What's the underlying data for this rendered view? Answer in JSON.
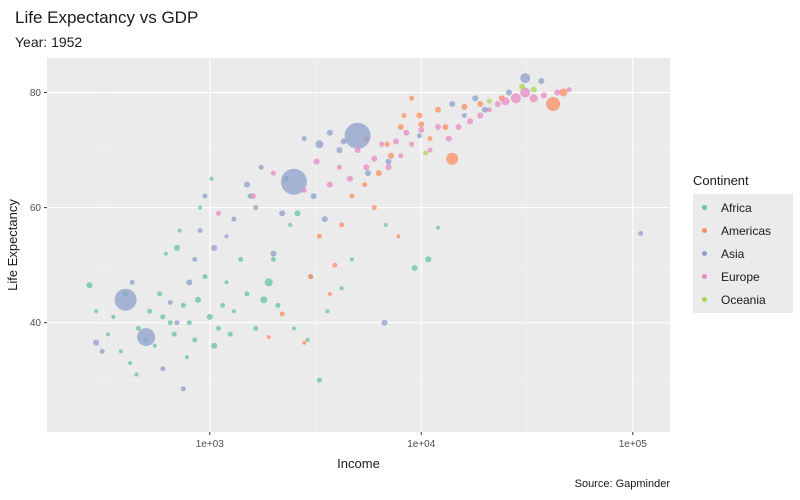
{
  "title": "Life Expectancy vs GDP",
  "subtitle": "Year: 1952",
  "caption": "Source: Gapminder",
  "chart_data": {
    "type": "scatter",
    "title": "Life Expectancy vs GDP",
    "subtitle": "Year: 1952",
    "xlabel": "Income",
    "ylabel": "Life Expectancy",
    "x_scale": "log10",
    "xlim": [
      170,
      150000
    ],
    "ylim": [
      21,
      86
    ],
    "x_ticks": [
      1000,
      10000,
      100000
    ],
    "x_tick_labels": [
      "1e+03",
      "1e+04",
      "1e+05"
    ],
    "y_ticks": [
      40,
      60,
      80
    ],
    "y_tick_labels": [
      "40",
      "60",
      "80"
    ],
    "grid": true,
    "legend": {
      "title": "Continent",
      "position": "right"
    },
    "series": [
      {
        "name": "Africa",
        "color": "#66c2a5",
        "points": [
          [
            270,
            46.5,
            3
          ],
          [
            290,
            42,
            2
          ],
          [
            330,
            38,
            2
          ],
          [
            350,
            41,
            2
          ],
          [
            380,
            35,
            2
          ],
          [
            400,
            45,
            2.5
          ],
          [
            420,
            33,
            2
          ],
          [
            450,
            31,
            2
          ],
          [
            460,
            39,
            2.5
          ],
          [
            500,
            37,
            2.5
          ],
          [
            520,
            42,
            2.5
          ],
          [
            550,
            36,
            2
          ],
          [
            580,
            45,
            2.5
          ],
          [
            600,
            41,
            2.5
          ],
          [
            620,
            52,
            2
          ],
          [
            650,
            40,
            2.5
          ],
          [
            680,
            38,
            2.5
          ],
          [
            700,
            53,
            3
          ],
          [
            720,
            56,
            2
          ],
          [
            750,
            43,
            2.5
          ],
          [
            780,
            34,
            2
          ],
          [
            800,
            40,
            2.5
          ],
          [
            850,
            37,
            2.5
          ],
          [
            880,
            44,
            3
          ],
          [
            900,
            60,
            2
          ],
          [
            950,
            48,
            2.5
          ],
          [
            1000,
            41,
            3
          ],
          [
            1020,
            65,
            2
          ],
          [
            1050,
            36,
            3
          ],
          [
            1100,
            39,
            2.5
          ],
          [
            1150,
            43,
            2.5
          ],
          [
            1200,
            47,
            2
          ],
          [
            1250,
            38,
            2.5
          ],
          [
            1300,
            42,
            2
          ],
          [
            1400,
            51,
            2.5
          ],
          [
            1500,
            45,
            2.5
          ],
          [
            1550,
            62,
            2.5
          ],
          [
            1650,
            39,
            2.5
          ],
          [
            1800,
            44,
            3.5
          ],
          [
            1900,
            47,
            4
          ],
          [
            2000,
            51,
            2.5
          ],
          [
            2100,
            43,
            2.5
          ],
          [
            2300,
            65,
            2.5
          ],
          [
            2400,
            57,
            2
          ],
          [
            2500,
            39,
            2
          ],
          [
            2600,
            59,
            3
          ],
          [
            2900,
            37,
            2
          ],
          [
            3000,
            48,
            2.5
          ],
          [
            3300,
            30,
            2.5
          ],
          [
            3600,
            42,
            2
          ],
          [
            4200,
            46,
            2
          ],
          [
            4700,
            51,
            2
          ],
          [
            6800,
            57,
            2
          ],
          [
            9300,
            49.5,
            3
          ],
          [
            10800,
            51,
            3
          ],
          [
            12000,
            56.5,
            2
          ]
        ]
      },
      {
        "name": "Americas",
        "color": "#fc8d62",
        "points": [
          [
            1900,
            37.5,
            2
          ],
          [
            2200,
            41.5,
            2.5
          ],
          [
            2800,
            36.5,
            2
          ],
          [
            3000,
            48,
            2.5
          ],
          [
            3300,
            55,
            2.5
          ],
          [
            3700,
            45,
            2
          ],
          [
            3900,
            50,
            2.5
          ],
          [
            4200,
            57,
            2.5
          ],
          [
            4700,
            62,
            2.5
          ],
          [
            5400,
            64,
            2.5
          ],
          [
            5500,
            72,
            2.5
          ],
          [
            6000,
            60,
            2.5
          ],
          [
            6300,
            66,
            3
          ],
          [
            6900,
            71,
            2.5
          ],
          [
            7200,
            69,
            3
          ],
          [
            7800,
            55,
            2
          ],
          [
            8000,
            74,
            3
          ],
          [
            8300,
            76,
            2.5
          ],
          [
            9000,
            79,
            2.5
          ],
          [
            9800,
            76,
            3
          ],
          [
            10000,
            74.5,
            3
          ],
          [
            11000,
            72,
            2.5
          ],
          [
            12000,
            77,
            3
          ],
          [
            13000,
            74,
            3
          ],
          [
            14000,
            68.5,
            6
          ],
          [
            16000,
            77.5,
            3
          ],
          [
            19000,
            78,
            3
          ],
          [
            24000,
            79,
            3
          ],
          [
            42000,
            78,
            7
          ],
          [
            47000,
            80,
            4
          ]
        ]
      },
      {
        "name": "Asia",
        "color": "#8da0cb",
        "points": [
          [
            290,
            36.5,
            3
          ],
          [
            310,
            35,
            2.5
          ],
          [
            400,
            44,
            11
          ],
          [
            430,
            47,
            2.5
          ],
          [
            500,
            37.5,
            9
          ],
          [
            600,
            32,
            2.5
          ],
          [
            650,
            43.5,
            2.5
          ],
          [
            700,
            40,
            2.5
          ],
          [
            750,
            28.5,
            2.5
          ],
          [
            800,
            47,
            3
          ],
          [
            850,
            51,
            2.5
          ],
          [
            900,
            56,
            2.5
          ],
          [
            950,
            62,
            2.5
          ],
          [
            1050,
            53,
            3
          ],
          [
            1200,
            55,
            2
          ],
          [
            1300,
            58,
            2.5
          ],
          [
            1500,
            64,
            3
          ],
          [
            1650,
            60,
            2.5
          ],
          [
            1750,
            67,
            2.5
          ],
          [
            2000,
            52,
            3
          ],
          [
            2200,
            59,
            3
          ],
          [
            2500,
            64.5,
            13
          ],
          [
            2800,
            72,
            2.5
          ],
          [
            3100,
            62,
            3
          ],
          [
            3300,
            71,
            4
          ],
          [
            3500,
            58,
            3
          ],
          [
            3700,
            73,
            3
          ],
          [
            4100,
            70,
            3
          ],
          [
            4300,
            71.5,
            3
          ],
          [
            5000,
            72.5,
            13
          ],
          [
            5600,
            66,
            3
          ],
          [
            6700,
            40,
            3
          ],
          [
            7000,
            68,
            3
          ],
          [
            9800,
            72.5,
            2.5
          ],
          [
            14000,
            78,
            3
          ],
          [
            16000,
            76,
            2.5
          ],
          [
            18000,
            79,
            3
          ],
          [
            20000,
            77,
            3
          ],
          [
            26000,
            80,
            3
          ],
          [
            31000,
            82.5,
            5
          ],
          [
            37000,
            82,
            3
          ],
          [
            109000,
            55.5,
            2.5
          ]
        ]
      },
      {
        "name": "Europe",
        "color": "#e78ac3",
        "points": [
          [
            1100,
            59,
            2.5
          ],
          [
            1600,
            62,
            3
          ],
          [
            2000,
            66,
            2.5
          ],
          [
            2800,
            63,
            2.5
          ],
          [
            3200,
            68,
            3
          ],
          [
            3700,
            64,
            3
          ],
          [
            4100,
            67,
            2.5
          ],
          [
            4600,
            65,
            3
          ],
          [
            5000,
            70,
            3
          ],
          [
            5500,
            67,
            3
          ],
          [
            6000,
            68.5,
            3
          ],
          [
            6500,
            71,
            2.5
          ],
          [
            7000,
            67,
            3
          ],
          [
            7600,
            71.5,
            3
          ],
          [
            8000,
            69,
            2.5
          ],
          [
            8500,
            73,
            3
          ],
          [
            9000,
            71,
            2.5
          ],
          [
            10000,
            73.5,
            3
          ],
          [
            11000,
            70,
            2.5
          ],
          [
            12000,
            74,
            3
          ],
          [
            13500,
            72,
            3
          ],
          [
            15000,
            74,
            3
          ],
          [
            17000,
            75,
            3
          ],
          [
            19000,
            76,
            3
          ],
          [
            21000,
            77,
            2.5
          ],
          [
            23000,
            78,
            3
          ],
          [
            25000,
            78.5,
            4
          ],
          [
            28000,
            79,
            5
          ],
          [
            31000,
            80,
            5
          ],
          [
            34000,
            79,
            4
          ],
          [
            38000,
            79.5,
            3
          ],
          [
            44000,
            80,
            3
          ],
          [
            50000,
            80.5,
            2.5
          ]
        ]
      },
      {
        "name": "Oceania",
        "color": "#a6d854",
        "points": [
          [
            10500,
            69.5,
            2.5
          ],
          [
            21000,
            78.5,
            2.5
          ],
          [
            30000,
            81,
            3
          ],
          [
            34000,
            80.5,
            3
          ]
        ]
      }
    ]
  }
}
